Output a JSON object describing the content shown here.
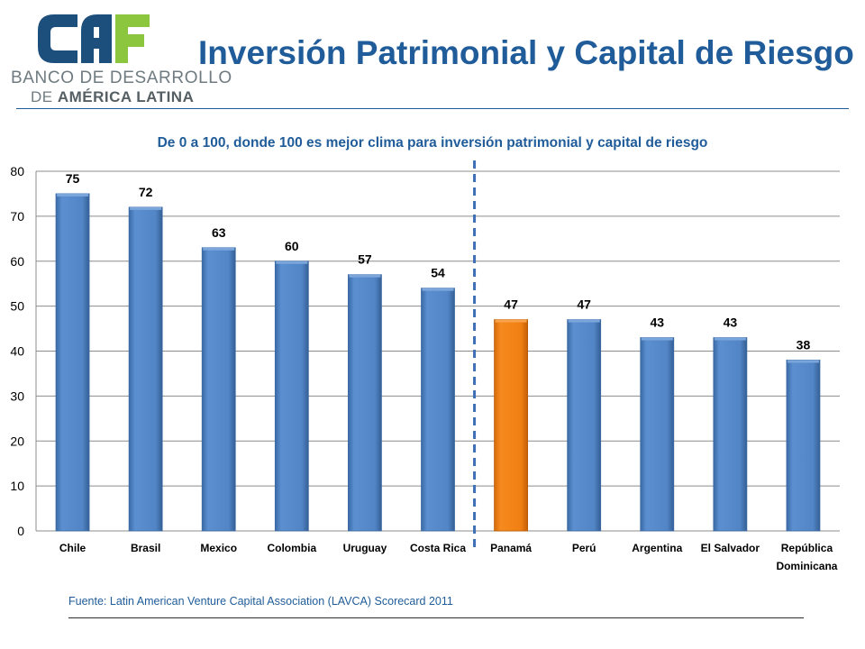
{
  "logo": {
    "brand_mark": "CAF",
    "line1": "BANCO DE DESARROLLO",
    "line2_prefix": "DE",
    "line2_bold": "AMÉRICA LATINA",
    "colors": {
      "dark_blue": "#1d4f7c",
      "green": "#8cc63f",
      "gray_text": "#6f7b80"
    }
  },
  "page_title": "Inversión Patrimonial y Capital de Riesgo",
  "source_note": "Fuente: Latin American Venture Capital Association (LAVCA)  Scorecard 2011",
  "chart_data": {
    "type": "bar",
    "title": "De 0 a 100, donde 100 es mejor clima para inversión patrimonial  y capital de riesgo",
    "categories": [
      "Chile",
      "Brasil",
      "Mexico",
      "Colombia",
      "Uruguay",
      "Costa Rica",
      "Panamá",
      "Perú",
      "Argentina",
      "El Salvador",
      "República Dominicana"
    ],
    "values": [
      75,
      72,
      63,
      60,
      57,
      54,
      47,
      47,
      43,
      43,
      38
    ],
    "highlight_category": "Panamá",
    "ylim": [
      0,
      80
    ],
    "yticks": [
      0,
      10,
      20,
      30,
      40,
      50,
      60,
      70,
      80
    ],
    "grid": true,
    "data_labels": true,
    "divider": {
      "style": "dashed",
      "between": [
        "Costa Rica",
        "Panamá"
      ]
    },
    "colors": {
      "bar": "#4f81bd",
      "highlight": "#f07f13",
      "grid": "#8c8c8c",
      "divider": "#3f6fb5",
      "label_text": "#000000"
    }
  }
}
